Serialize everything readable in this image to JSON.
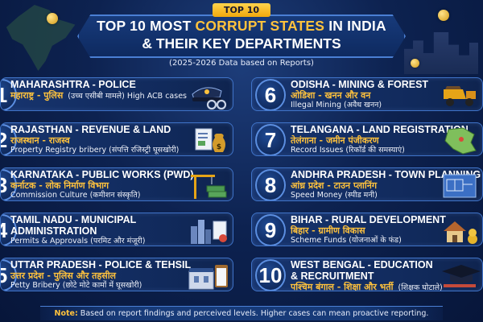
{
  "header": {
    "badge": "TOP 10",
    "title_pre": "TOP 10 MOST ",
    "title_highlight": "CORRUPT STATES",
    "title_post": " IN INDIA",
    "title_line2": "& THEIR KEY DEPARTMENTS",
    "subtitle": "(2025-2026 Data based on Reports)"
  },
  "items": [
    {
      "rank": "1",
      "en": "MAHARASHTRA - POLICE",
      "hi": "महाराष्ट्र - पुलिस",
      "hi_note": "(उच्च एसीबी मामले) High ACB cases",
      "note": "",
      "icon": "police-cap-handcuffs-icon"
    },
    {
      "rank": "2",
      "en": "RAJASTHAN - REVENUE & LAND",
      "hi": "राजस्थान - राजस्व",
      "hi_note": "",
      "note": "Property Registry bribery (संपत्ति रजिस्ट्री घूसखोरी)",
      "icon": "land-documents-money-bag-icon"
    },
    {
      "rank": "3",
      "en": "KARNATAKA - PUBLIC WORKS (PWD)",
      "hi": "कर्नाटक - लोक निर्माण विभाग",
      "hi_note": "",
      "note": "Commission Culture (कमीशन संस्कृति)",
      "icon": "crane-cash-icon"
    },
    {
      "rank": "4",
      "en": "TAMIL NADU - MUNICIPAL",
      "en2": "ADMINISTRATION",
      "hi": "",
      "hi_note": "",
      "note": "Permits & Approvals (परमिट और मंजूरी)",
      "icon": "city-permit-icon"
    },
    {
      "rank": "5",
      "en": "UTTAR PRADESH - POLICE & TEHSIL",
      "hi": "उत्तर प्रदेश - पुलिस और तहसील",
      "hi_note": "",
      "note": "Petty Bribery (छोटे मोटे कामों में घूसखोरी)",
      "icon": "local-station-clipboard-icon"
    },
    {
      "rank": "6",
      "en": "ODISHA - MINING & FOREST",
      "hi": "ओडिशा - खनन और वन",
      "hi_note": "",
      "note": "Illegal Mining (अवैध खनन)",
      "icon": "mining-truck-icon"
    },
    {
      "rank": "7",
      "en": "TELANGANA - LAND REGISTRATION",
      "hi": "तेलंगाना - जमीन पंजीकरण",
      "hi_note": "",
      "note": "Record Issues (रिकॉर्ड की समस्याएं)",
      "icon": "state-map-icon"
    },
    {
      "rank": "8",
      "en": "ANDHRA PRADESH - TOWN PLANNING",
      "hi": "आंध्र प्रदेश - टाउन प्लानिंग",
      "hi_note": "",
      "note": "Speed Money (स्पीड मनी)",
      "icon": "blueprint-icon"
    },
    {
      "rank": "9",
      "en": "BIHAR - RURAL DEVELOPMENT",
      "hi": "बिहार - ग्रामीण विकास",
      "hi_note": "",
      "note": "Scheme Funds (योजनाओं के फंड)",
      "icon": "village-house-coins-icon"
    },
    {
      "rank": "10",
      "en": "WEST BENGAL - EDUCATION",
      "en2": "& RECRUITMENT",
      "hi": "पश्चिम बंगाल - शिक्षा और भर्ती",
      "hi_note": "(शिक्षक घोटाले)",
      "note": "",
      "icon": "graduation-cap-books-icon"
    }
  ],
  "footer": {
    "note_label": "Note:",
    "text": " Based on report findings and perceived levels. Higher cases can mean proactive reporting."
  },
  "colors": {
    "accent": "#ffc23d",
    "card_border": "#3f73c8",
    "background": "#0d2250"
  }
}
